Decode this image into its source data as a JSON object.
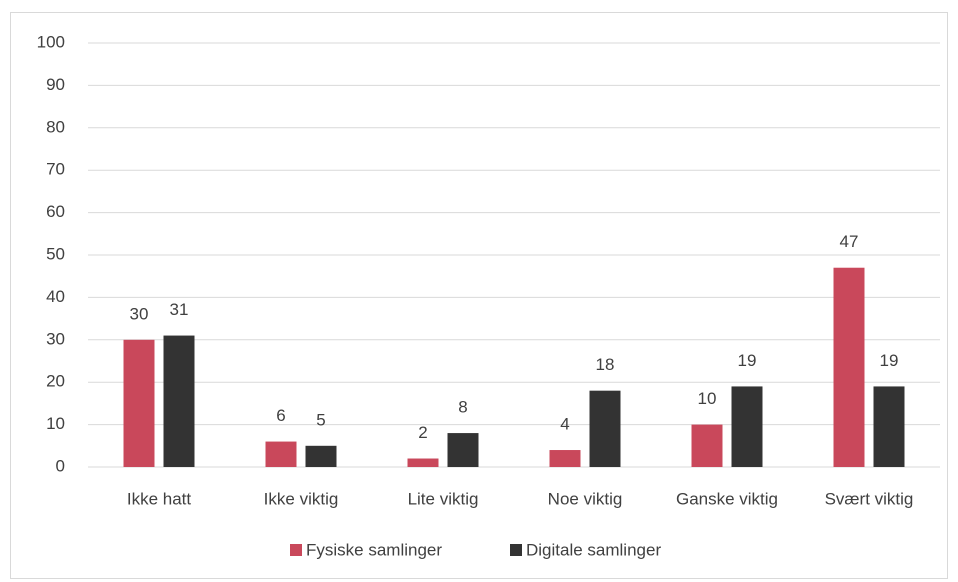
{
  "chart_data": {
    "type": "bar",
    "categories": [
      "Ikke hatt",
      "Ikke viktig",
      "Lite viktig",
      "Noe viktig",
      "Ganske viktig",
      "Svært viktig"
    ],
    "series": [
      {
        "name": "Fysiske samlinger",
        "color": "#c9485b",
        "values": [
          30,
          6,
          2,
          4,
          10,
          47
        ]
      },
      {
        "name": "Digitale samlinger",
        "color": "#333333",
        "values": [
          31,
          5,
          8,
          18,
          19,
          19
        ]
      }
    ],
    "ylim": [
      0,
      100
    ],
    "yticks": [
      0,
      10,
      20,
      30,
      40,
      50,
      60,
      70,
      80,
      90,
      100
    ],
    "grid": true,
    "legend": "bottom"
  }
}
